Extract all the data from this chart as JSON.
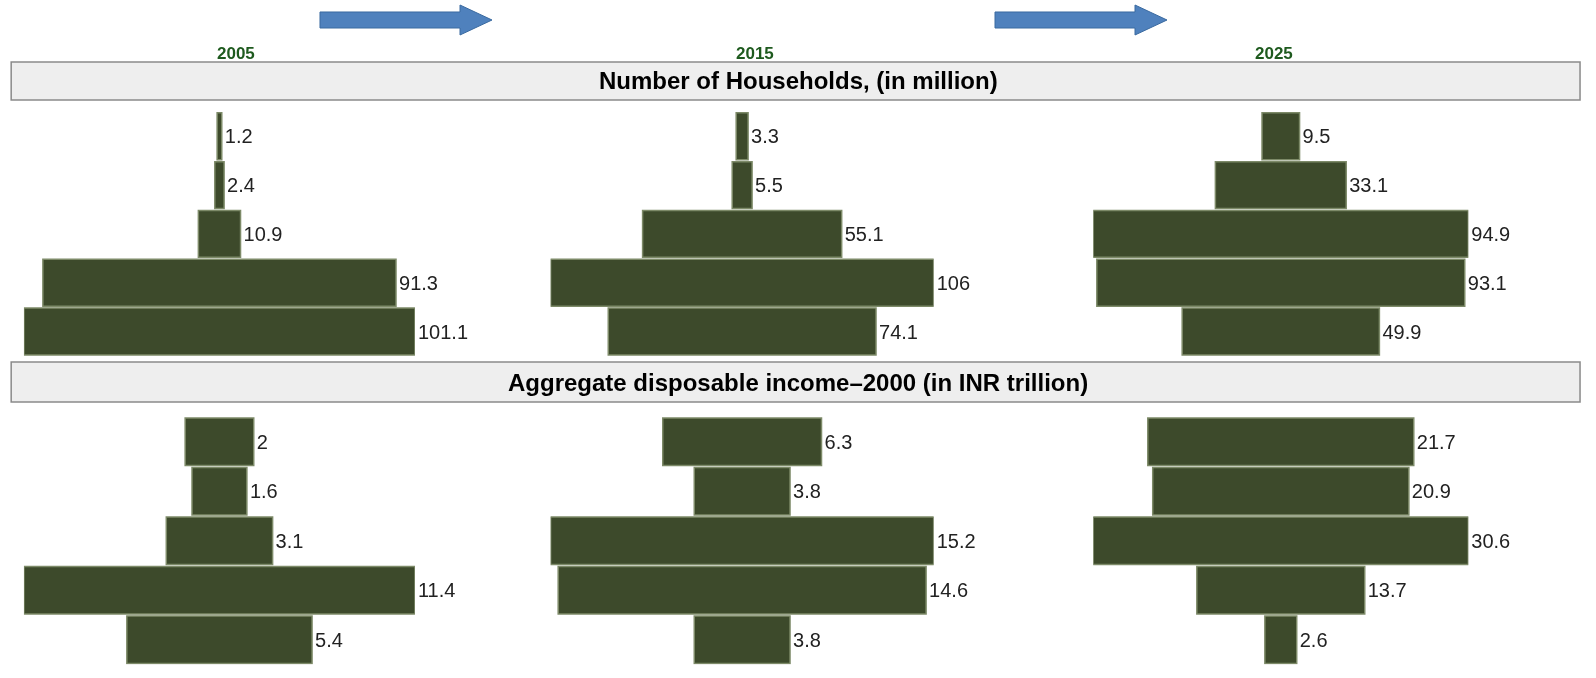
{
  "chart_data": [
    {
      "type": "other",
      "title": "2005",
      "subtitle": "Number of Households, (in million)",
      "categories": [
        null,
        null,
        null,
        null,
        null
      ],
      "values": [
        1.2,
        2.4,
        10.9,
        91.3,
        101.1
      ],
      "color": "#3d4a2b",
      "data_labels": true
    },
    {
      "type": "other",
      "title": "2015",
      "categories": [
        null,
        null,
        null,
        null,
        null
      ],
      "values": [
        3.3,
        5.5,
        55.1,
        106,
        74.1
      ],
      "color": "#3d4a2b",
      "data_labels": true
    },
    {
      "type": "other",
      "title": "2025",
      "categories": [
        null,
        null,
        null,
        null,
        null
      ],
      "values": [
        9.5,
        33.1,
        94.9,
        93.1,
        49.9
      ],
      "color": "#3d4a2b",
      "data_labels": true
    },
    {
      "type": "other",
      "categories": [
        null,
        null,
        null,
        null,
        null
      ],
      "values": [
        2,
        1.6,
        3.1,
        11.4,
        5.4
      ],
      "color": "#3d4a2b",
      "data_labels": true
    },
    {
      "type": "other",
      "title": "Aggregate disposable income–2000 (in INR trillion)",
      "categories": [
        null,
        null,
        null,
        null,
        null
      ],
      "values": [
        6.3,
        3.8,
        15.2,
        14.6,
        3.8
      ],
      "color": "#3d4a2b",
      "data_labels": true
    },
    {
      "type": "other",
      "categories": [
        null,
        null,
        null,
        null,
        null
      ],
      "values": [
        21.7,
        20.9,
        30.6,
        13.7,
        2.6
      ],
      "color": "#3d4a2b",
      "data_labels": true
    }
  ]
}
